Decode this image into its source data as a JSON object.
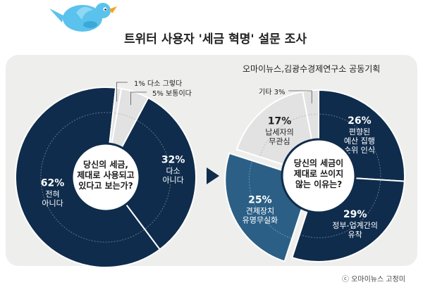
{
  "title": "트위터 사용자 '세금 혁명' 설문 조사",
  "source": "오마이뉴스,김광수경제연구소 공동기획",
  "credit": "ⓒ 오마이뉴스 고정미",
  "colors": {
    "dark": "#0f2c4c",
    "mid": "#2b5f86",
    "light": "#e2e2e2",
    "panel": "#eeeeec"
  },
  "chart_data": [
    {
      "type": "pie",
      "title": "당신의 세금, 제대로 사용되고 있다고 보는가?",
      "slices": [
        {
          "label": "다소 아니다",
          "value": 32,
          "pct": "32%",
          "lines": [
            "다소",
            "아니다"
          ],
          "color": "#0f2c4c",
          "labelR": 0.75,
          "labelAngle": 85
        },
        {
          "label": "전혀 아니다",
          "value": 62,
          "pct": "62%",
          "lines": [
            "전혀",
            "아니다"
          ],
          "color": "#0f2c4c",
          "labelR": 0.62,
          "labelAngle": 252
        },
        {
          "label": "1% 다소 그렇다",
          "value": 1,
          "color": "#e2e2e2",
          "callout": "1% 다소 그렇다"
        },
        {
          "label": "5% 보통이다",
          "value": 5,
          "color": "#e2e2e2",
          "callout": "5% 보통이다"
        }
      ]
    },
    {
      "type": "pie",
      "title": "당신의 세금이 제대로 쓰이지 않는 이유는?",
      "slices": [
        {
          "label": "편향된 예산 집행 순위 인식",
          "value": 26,
          "pct": "26%",
          "lines": [
            "편향된",
            "예산 집행",
            "순위 인식"
          ],
          "color": "#0f2c4c",
          "labelR": 0.66,
          "labelAngle": 46
        },
        {
          "label": "정부-업계간의 유착",
          "value": 29,
          "pct": "29%",
          "lines": [
            "정부-업계간의",
            "유착"
          ],
          "color": "#0f2c4c",
          "labelR": 0.72,
          "labelAngle": 144
        },
        {
          "label": "견제장치 유명무실화",
          "value": 25,
          "pct": "25%",
          "lines": [
            "견제장치",
            "유명무실화"
          ],
          "color": "#2b5f86",
          "labelR": 0.7,
          "labelAngle": 238
        },
        {
          "label": "납세자의 무관심",
          "value": 17,
          "pct": "17%",
          "lines": [
            "납세자의",
            "무관심"
          ],
          "color": "#e2e2e2",
          "dark": true,
          "labelR": 0.68,
          "labelAngle": 318
        },
        {
          "label": "기타 3%",
          "value": 3,
          "color": "#e2e2e2",
          "callout": "기타 3%"
        }
      ]
    }
  ]
}
